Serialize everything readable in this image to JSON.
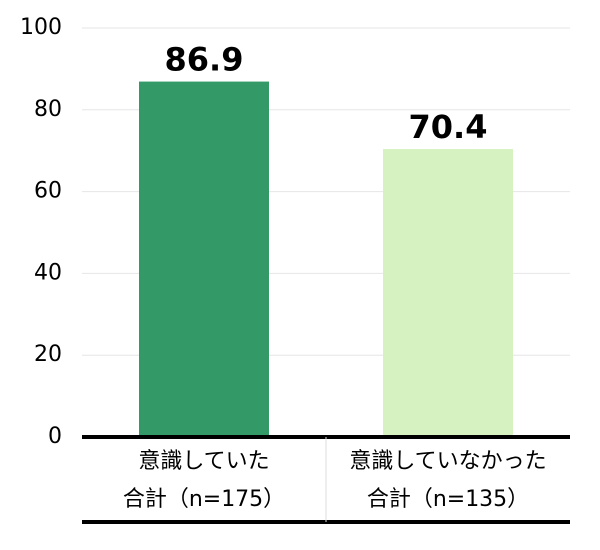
{
  "chart_data": {
    "type": "bar",
    "categories": [
      [
        "意識していた",
        "合計（n=175）"
      ],
      [
        "意識していなかった",
        "合計（n=135）"
      ]
    ],
    "values": [
      86.9,
      70.4
    ],
    "colors": [
      "#339966",
      "#d6f2c0"
    ],
    "ylim": [
      0,
      100
    ],
    "yticks": [
      0,
      20,
      40,
      60,
      80,
      100
    ],
    "grid": true
  }
}
